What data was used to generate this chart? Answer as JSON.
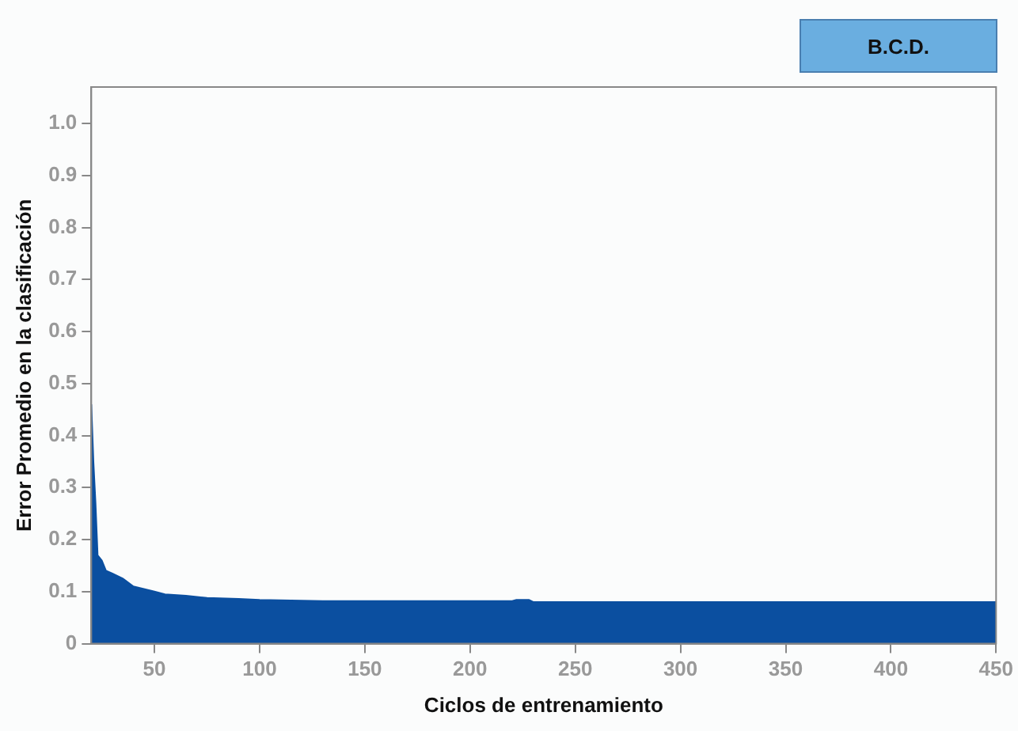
{
  "chart_data": {
    "type": "area",
    "xlabel": "Ciclos de entrenamiento",
    "ylabel": "Error Promedio en la clasificación",
    "annotations": [
      "B.C.D."
    ],
    "x": [
      20,
      21,
      22,
      23,
      25,
      27,
      30,
      35,
      40,
      45,
      50,
      55,
      65,
      75,
      90,
      100,
      130,
      220,
      222,
      228,
      230,
      450
    ],
    "series": [
      {
        "color": "#0b4fa0",
        "values": [
          0.46,
          0.35,
          0.27,
          0.17,
          0.16,
          0.14,
          0.135,
          0.125,
          0.11,
          0.105,
          0.1,
          0.095,
          0.092,
          0.088,
          0.086,
          0.084,
          0.082,
          0.082,
          0.084,
          0.084,
          0.08,
          0.08
        ]
      }
    ],
    "xlim": [
      20,
      450
    ],
    "xticks": [
      50,
      100,
      150,
      200,
      250,
      300,
      350,
      400,
      450
    ],
    "ylim": [
      0,
      1.07
    ],
    "yticks": [
      {
        "value": 0,
        "label": "0"
      },
      {
        "value": 0.1,
        "label": "0.1"
      },
      {
        "value": 0.2,
        "label": "0.2"
      },
      {
        "value": 0.3,
        "label": "0.3"
      },
      {
        "value": 0.4,
        "label": "0.4"
      },
      {
        "value": 0.5,
        "label": "0.5"
      },
      {
        "value": 0.6,
        "label": "0.6"
      },
      {
        "value": 0.7,
        "label": "0.7"
      },
      {
        "value": 0.8,
        "label": "0.8"
      },
      {
        "value": 0.9,
        "label": "0.9"
      },
      {
        "value": 1,
        "label": "1.0"
      }
    ],
    "grid": false,
    "legend": false
  }
}
